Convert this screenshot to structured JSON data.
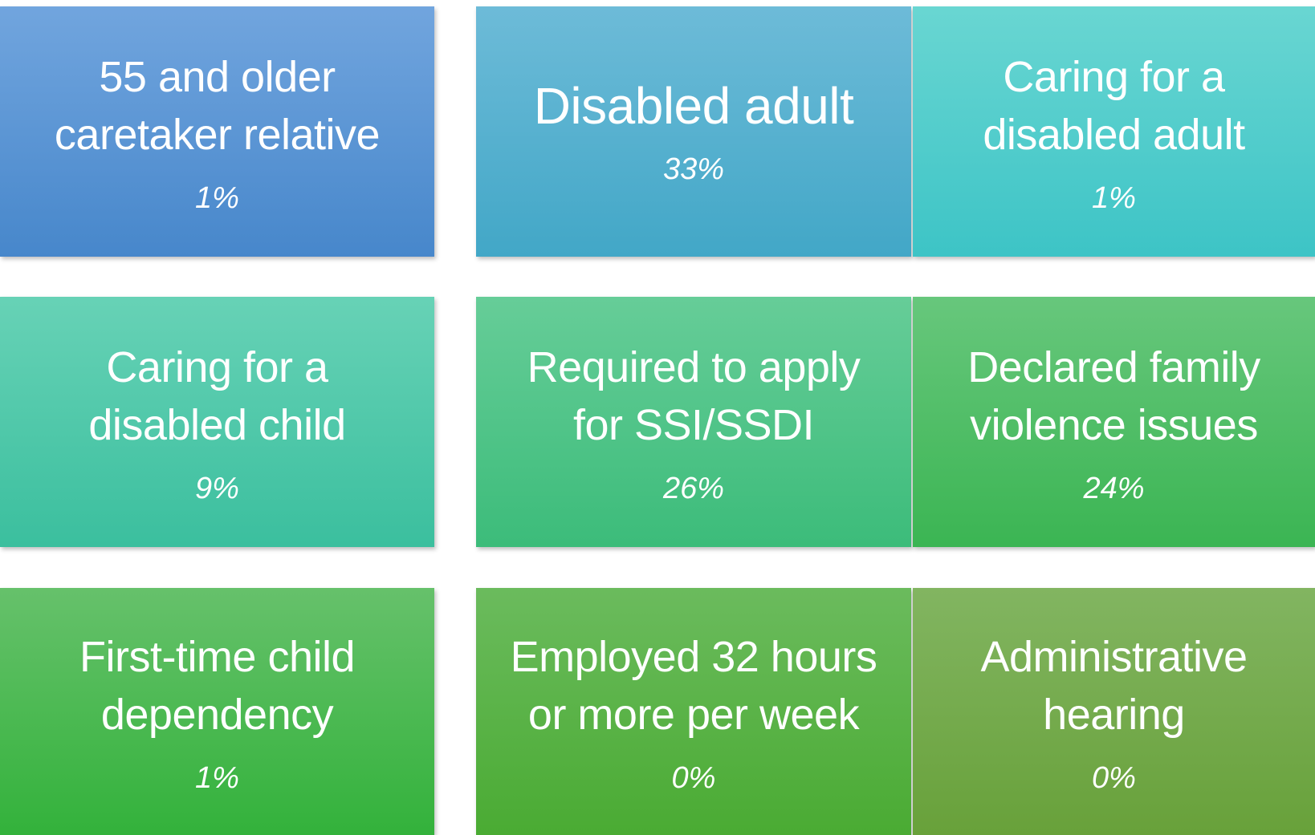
{
  "tiles": [
    {
      "label": [
        "55 and older",
        "caretaker relative"
      ],
      "percent": "1%"
    },
    {
      "label": [
        "Disabled adult"
      ],
      "percent": "33%"
    },
    {
      "label": [
        "Caring for a",
        "disabled adult"
      ],
      "percent": "1%"
    },
    {
      "label": [
        "Caring for a",
        "disabled child"
      ],
      "percent": "9%"
    },
    {
      "label": [
        "Required to apply",
        "for SSI/SSDI"
      ],
      "percent": "26%"
    },
    {
      "label": [
        "Declared family",
        "violence issues"
      ],
      "percent": "24%"
    },
    {
      "label": [
        "First-time child",
        "dependency"
      ],
      "percent": "1%"
    },
    {
      "label": [
        "Employed 32 hours",
        "or more per week"
      ],
      "percent": "0%"
    },
    {
      "label": [
        "Administrative",
        "hearing"
      ],
      "percent": "0%"
    }
  ]
}
